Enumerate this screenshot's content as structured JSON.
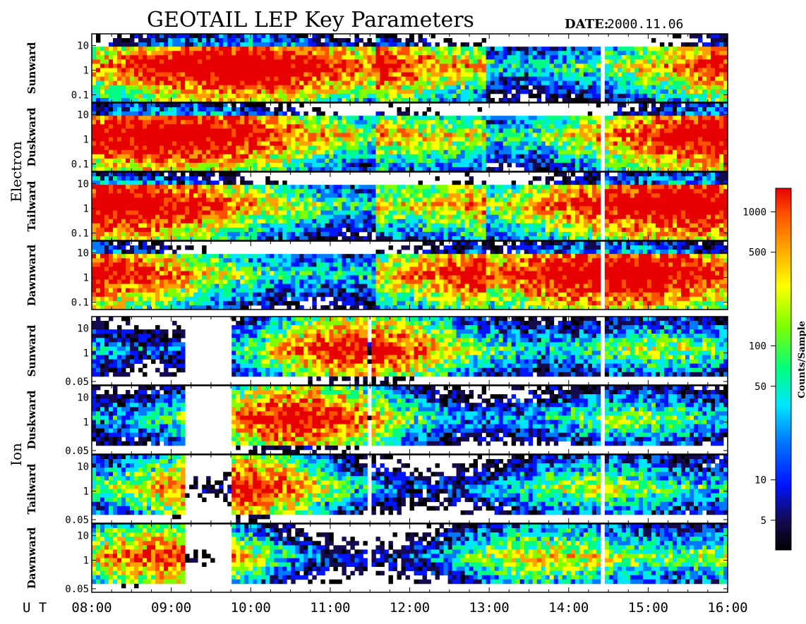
{
  "title": "GEOTAIL LEP Key Parameters",
  "date_label": "DATE:",
  "date_value": "2000.11.06",
  "x_axis_prefix": "U T",
  "colors": {
    "scale": [
      "#000000",
      "#140a50",
      "#0014ff",
      "#0078ff",
      "#00e6ff",
      "#00ff80",
      "#80ff00",
      "#ffff00",
      "#ffa000",
      "#ff5000",
      "#e60000"
    ],
    "frame": "#000000",
    "background": "#ffffff"
  },
  "chart_data": {
    "type": "heatmap",
    "title": "GEOTAIL LEP Key Parameters",
    "xlabel": "U T",
    "x_ticks": [
      "08:00",
      "09:00",
      "10:00",
      "11:00",
      "12:00",
      "13:00",
      "14:00",
      "15:00",
      "16:00"
    ],
    "xlim": [
      "08:00",
      "16:00"
    ],
    "y_scale": "log",
    "colorbar": {
      "label": "Counts/Sample",
      "scale": "log",
      "range": [
        3,
        1500
      ],
      "ticks": [
        "1000",
        "500",
        "100",
        "50",
        "10",
        "5"
      ],
      "tick_values": [
        1000,
        500,
        100,
        50,
        10,
        5
      ]
    },
    "groups": [
      {
        "name": "Electron",
        "panels": [
          {
            "name": "Sunward",
            "y_ticks": [
              "10",
              "1",
              "0.1"
            ],
            "ylim": [
              0.05,
              30
            ]
          },
          {
            "name": "Duskward",
            "y_ticks": [
              "10",
              "1",
              "0.1"
            ],
            "ylim": [
              0.05,
              30
            ]
          },
          {
            "name": "Tailward",
            "y_ticks": [
              "10",
              "1",
              "0.1"
            ],
            "ylim": [
              0.05,
              30
            ]
          },
          {
            "name": "Dawnward",
            "y_ticks": [
              "10",
              "1",
              "0.1"
            ],
            "ylim": [
              0.05,
              30
            ]
          }
        ]
      },
      {
        "name": "Ion",
        "panels": [
          {
            "name": "Sunward",
            "y_ticks": [
              "10",
              "1",
              "0.05"
            ],
            "ylim": [
              0.05,
              30
            ]
          },
          {
            "name": "Duskward",
            "y_ticks": [
              "10",
              "1",
              "0.05"
            ],
            "ylim": [
              0.05,
              30
            ]
          },
          {
            "name": "Tailward",
            "y_ticks": [
              "10",
              "1",
              "0.05"
            ],
            "ylim": [
              0.05,
              30
            ]
          },
          {
            "name": "Dawnward",
            "y_ticks": [
              "10",
              "1",
              "0.05"
            ],
            "ylim": [
              0.05,
              30
            ]
          }
        ]
      }
    ]
  }
}
